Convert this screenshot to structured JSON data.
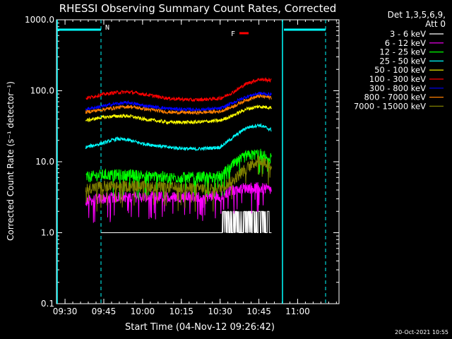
{
  "chart_data": {
    "type": "line",
    "title": "RHESSI Observing Summary Count Rates, Corrected",
    "xlabel": "Start Time (04-Nov-12 09:26:42)",
    "ylabel": "Corrected Count Rate (s⁻¹ detector⁻¹)",
    "yscale": "log",
    "ylim": [
      0.1,
      1000.0
    ],
    "y_ticks": [
      "0.1",
      "1.0",
      "10.0",
      "100.0",
      "1000.0"
    ],
    "x_ticks": [
      "09:30",
      "09:45",
      "10:00",
      "10:15",
      "10:30",
      "10:45",
      "11:00"
    ],
    "x_tick_minutes": [
      570,
      585,
      600,
      615,
      630,
      645,
      660
    ],
    "xlim_minutes": [
      566.7,
      676
    ],
    "legend_header": [
      "Det 1,3,5,6,9,",
      "Att 0"
    ],
    "legend_position": "right",
    "series": [
      {
        "name": "3 - 6 keV",
        "color": "#ffffff",
        "x": [
          584,
          590,
          600,
          610,
          620,
          630,
          632,
          634,
          636,
          638,
          640,
          642,
          644,
          646,
          648,
          650
        ],
        "y": [
          1.0,
          1.0,
          1.0,
          1.0,
          1.0,
          1.0,
          1.5,
          2.0,
          1.5,
          2.0,
          1.5,
          2.0,
          1.8,
          2.0,
          1.8,
          1.0
        ]
      },
      {
        "name": "6 - 12 keV",
        "color": "#ff00ff",
        "x": [
          578,
          584,
          590,
          600,
          610,
          620,
          630,
          635,
          640,
          645,
          650
        ],
        "y": [
          2.8,
          3.0,
          3.2,
          3.2,
          3.2,
          3.2,
          3.3,
          4.0,
          4.3,
          4.3,
          4.0
        ]
      },
      {
        "name": "12 - 25 keV",
        "color": "#00ff00",
        "x": [
          578,
          584,
          590,
          600,
          610,
          620,
          630,
          635,
          640,
          645,
          650
        ],
        "y": [
          6.0,
          6.5,
          6.5,
          6.5,
          6.0,
          6.0,
          6.2,
          9.0,
          12.0,
          13.0,
          11.0
        ]
      },
      {
        "name": "25 - 50 keV",
        "color": "#00ffff",
        "x": [
          578,
          584,
          590,
          595,
          600,
          610,
          620,
          630,
          635,
          640,
          645,
          650
        ],
        "y": [
          16,
          18,
          21,
          20,
          18,
          16,
          15,
          16,
          22,
          30,
          33,
          28
        ]
      },
      {
        "name": "50 - 100 keV",
        "color": "#ffff00",
        "x": [
          578,
          584,
          590,
          595,
          600,
          610,
          620,
          630,
          635,
          640,
          645,
          650
        ],
        "y": [
          38,
          42,
          44,
          44,
          40,
          36,
          36,
          38,
          45,
          55,
          60,
          58
        ]
      },
      {
        "name": "100 - 300 keV",
        "color": "#ff0000",
        "x": [
          578,
          584,
          590,
          595,
          600,
          610,
          620,
          630,
          635,
          640,
          645,
          650
        ],
        "y": [
          78,
          88,
          95,
          96,
          90,
          78,
          74,
          78,
          95,
          125,
          145,
          140
        ]
      },
      {
        "name": "300 - 800 keV",
        "color": "#0000ff",
        "x": [
          578,
          584,
          590,
          595,
          600,
          610,
          620,
          630,
          635,
          640,
          645,
          650
        ],
        "y": [
          55,
          60,
          66,
          68,
          62,
          56,
          54,
          56,
          68,
          82,
          92,
          88
        ]
      },
      {
        "name": "800 - 7000 keV",
        "color": "#ff8000",
        "x": [
          578,
          584,
          590,
          595,
          600,
          610,
          620,
          630,
          635,
          640,
          645,
          650
        ],
        "y": [
          50,
          54,
          58,
          60,
          56,
          50,
          49,
          51,
          60,
          74,
          84,
          80
        ]
      },
      {
        "name": "7000 - 15000 keV",
        "color": "#808000",
        "x": [
          578,
          584,
          590,
          600,
          610,
          620,
          630,
          635,
          640,
          645,
          650
        ],
        "y": [
          4.2,
          4.5,
          4.5,
          4.5,
          4.3,
          4.2,
          4.2,
          5.5,
          8.0,
          10.5,
          9.0
        ]
      }
    ],
    "annotations": [
      {
        "text": "N",
        "color": "#00ffff"
      },
      {
        "text": "F",
        "color": "#ff0000"
      }
    ]
  },
  "footer": {
    "timestamp": "20-Oct-2021 10:55"
  }
}
